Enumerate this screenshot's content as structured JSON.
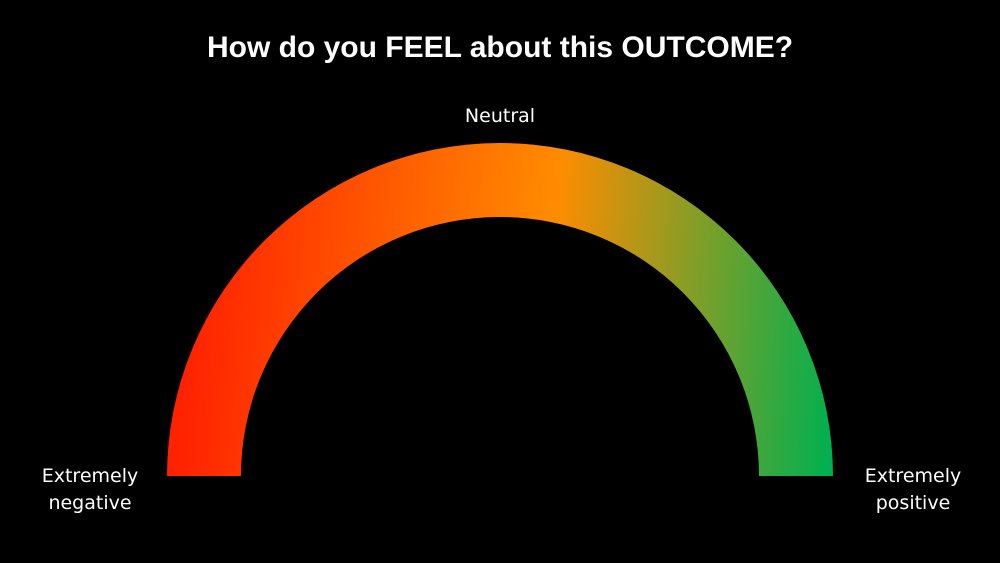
{
  "slide": {
    "title": "How do you FEEL about this OUTCOME?",
    "background_color": "#000000",
    "text_color": "#ffffff"
  },
  "gauge": {
    "type": "semicircle-gradient-scale",
    "labels": {
      "left_line1": "Extremely",
      "left_line2": "negative",
      "top": "Neutral",
      "right_line1": "Extremely",
      "right_line2": "positive"
    },
    "gradient_colors": {
      "start": "#ff2200",
      "middle": "#ff8c00",
      "end": "#00b050"
    }
  }
}
